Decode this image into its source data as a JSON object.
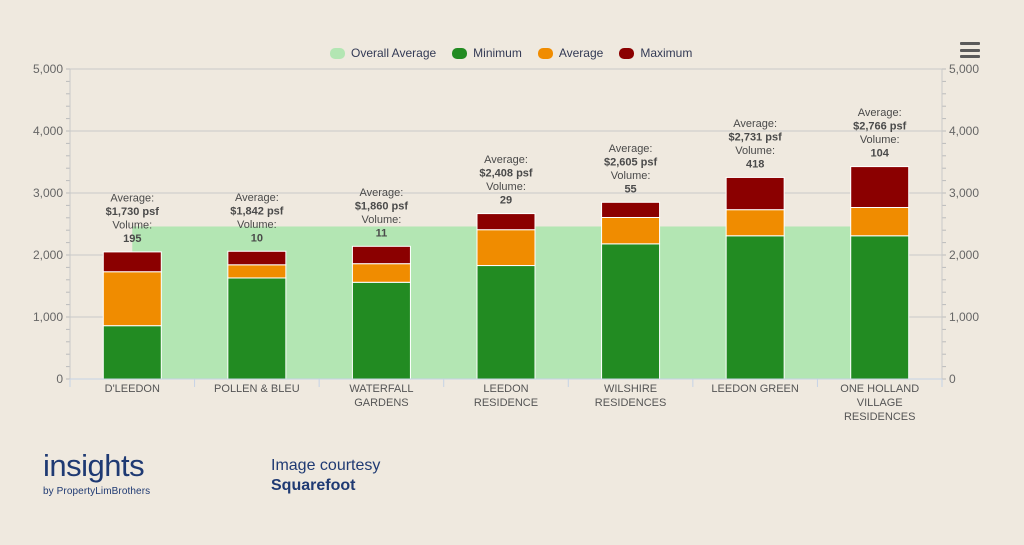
{
  "chart_data": {
    "type": "bar",
    "stacked": true,
    "categories": [
      [
        "D'LEEDON"
      ],
      [
        "POLLEN & BLEU"
      ],
      [
        "WATERFALL",
        "GARDENS"
      ],
      [
        "LEEDON",
        "RESIDENCE"
      ],
      [
        "WILSHIRE",
        "RESIDENCES"
      ],
      [
        "LEEDON GREEN"
      ],
      [
        "ONE HOLLAND",
        "VILLAGE",
        "RESIDENCES"
      ]
    ],
    "series": [
      {
        "name": "Minimum",
        "color": "#228b22",
        "values": [
          860,
          1630,
          1560,
          1830,
          2180,
          2310,
          2310
        ]
      },
      {
        "name": "Average",
        "color": "#f08c00",
        "values": [
          870,
          212,
          300,
          578,
          425,
          421,
          456
        ]
      },
      {
        "name": "Maximum",
        "color": "#8b0000",
        "values": [
          320,
          218,
          280,
          260,
          245,
          520,
          660
        ]
      }
    ],
    "overall_average": {
      "name": "Overall Average",
      "color": "#b3e6b3",
      "value": 2460
    },
    "data_labels": [
      {
        "average_label": "Average:",
        "average": "$1,730 psf",
        "volume_label": "Volume:",
        "volume": "195"
      },
      {
        "average_label": "Average:",
        "average": "$1,842 psf",
        "volume_label": "Volume:",
        "volume": "10"
      },
      {
        "average_label": "Average:",
        "average": "$1,860 psf",
        "volume_label": "Volume:",
        "volume": "11"
      },
      {
        "average_label": "Average:",
        "average": "$2,408 psf",
        "volume_label": "Volume:",
        "volume": "29"
      },
      {
        "average_label": "Average:",
        "average": "$2,605 psf",
        "volume_label": "Volume:",
        "volume": "55"
      },
      {
        "average_label": "Average:",
        "average": "$2,731 psf",
        "volume_label": "Volume:",
        "volume": "418"
      },
      {
        "average_label": "Average:",
        "average": "$2,766 psf",
        "volume_label": "Volume:",
        "volume": "104"
      }
    ],
    "ylim": [
      0,
      5000
    ],
    "yticks": [
      "0",
      "1,000",
      "2,000",
      "3,000",
      "4,000",
      "5,000"
    ],
    "yticks_right": [
      "0",
      "1,000",
      "2,000",
      "3,000",
      "4,000",
      "5,000"
    ],
    "grid": true,
    "legend_position": "top-center",
    "title": "",
    "xlabel": "",
    "ylabel": ""
  },
  "legend": [
    {
      "label": "Overall Average",
      "color": "#b3e6b3"
    },
    {
      "label": "Minimum",
      "color": "#228b22"
    },
    {
      "label": "Average",
      "color": "#f08c00"
    },
    {
      "label": "Maximum",
      "color": "#8b0000"
    }
  ],
  "menu": {
    "icon": "hamburger-menu-icon"
  },
  "branding": {
    "main": "insights",
    "sub": "by PropertyLimBrothers"
  },
  "courtesy": {
    "label": "Image courtesy",
    "source": "Squarefoot"
  }
}
